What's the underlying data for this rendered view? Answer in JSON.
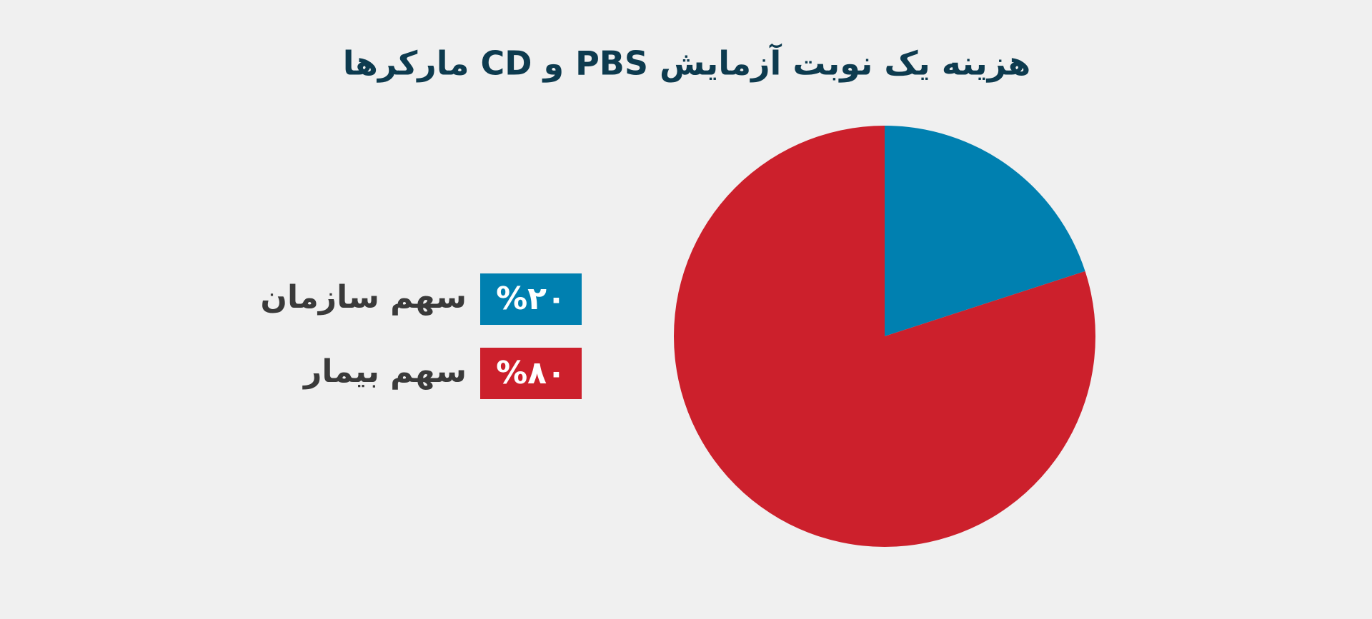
{
  "chart_data": {
    "type": "pie",
    "title": "هزینه یک نوبت آزمایش PBS و CD مارکرها",
    "categories": [
      "سهم سازمان",
      "سهم بیمار"
    ],
    "values": [
      20,
      80
    ],
    "value_labels": [
      "%۲۰",
      "%۸۰"
    ],
    "colors": [
      "#0080b0",
      "#cc202c"
    ]
  }
}
